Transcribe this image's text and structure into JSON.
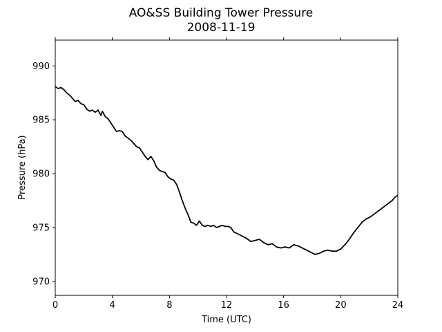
{
  "chart_data": {
    "type": "line",
    "title": "AO&SS Building Tower Pressure",
    "subtitle": "2008-11-19",
    "xlabel": "Time (UTC)",
    "ylabel": "Pressure (hPa)",
    "xlim": [
      0,
      24
    ],
    "ylim": [
      968.7,
      992.4
    ],
    "xticks": [
      0,
      4,
      8,
      12,
      16,
      20,
      24
    ],
    "yticks": [
      970,
      975,
      980,
      985,
      990
    ],
    "grid": false,
    "line_color": "#000000",
    "series": [
      {
        "x": [
          0.0,
          0.2,
          0.4,
          0.6,
          0.8,
          1.0,
          1.2,
          1.4,
          1.6,
          1.8,
          2.0,
          2.2,
          2.4,
          2.6,
          2.8,
          3.0,
          3.2,
          3.3,
          3.5,
          3.7,
          3.9,
          4.1,
          4.3,
          4.5,
          4.7,
          4.9,
          5.1,
          5.3,
          5.5,
          5.7,
          5.9,
          6.1,
          6.3,
          6.5,
          6.7,
          6.9,
          7.1,
          7.3,
          7.5,
          7.7,
          7.9,
          8.1,
          8.3,
          8.5,
          8.7,
          8.9,
          9.1,
          9.3,
          9.5,
          9.7,
          9.9,
          10.1,
          10.3,
          10.5,
          10.7,
          10.9,
          11.1,
          11.3,
          11.5,
          11.7,
          11.9,
          12.1,
          12.3,
          12.5,
          12.8,
          13.1,
          13.4,
          13.7,
          14.0,
          14.3,
          14.6,
          14.9,
          15.2,
          15.5,
          15.8,
          16.1,
          16.4,
          16.7,
          17.0,
          17.3,
          17.6,
          17.9,
          18.2,
          18.5,
          18.8,
          19.1,
          19.4,
          19.7,
          20.0,
          20.3,
          20.6,
          20.9,
          21.2,
          21.5,
          21.8,
          22.1,
          22.4,
          22.7,
          23.0,
          23.3,
          23.6,
          23.8,
          24.0
        ],
        "values": [
          988.1,
          987.9,
          988.0,
          987.8,
          987.5,
          987.3,
          987.0,
          986.7,
          986.8,
          986.5,
          986.4,
          986.0,
          985.8,
          985.9,
          985.7,
          985.9,
          985.4,
          985.8,
          985.3,
          985.1,
          984.7,
          984.3,
          983.9,
          984.0,
          983.9,
          983.5,
          983.3,
          983.1,
          982.8,
          982.5,
          982.4,
          982.0,
          981.6,
          981.3,
          981.6,
          981.2,
          980.6,
          980.3,
          980.2,
          980.1,
          979.7,
          979.5,
          979.4,
          979.0,
          978.3,
          977.5,
          976.8,
          976.2,
          975.5,
          975.4,
          975.2,
          975.6,
          975.2,
          975.1,
          975.2,
          975.1,
          975.2,
          975.0,
          975.1,
          975.2,
          975.1,
          975.1,
          975.0,
          974.6,
          974.4,
          974.2,
          974.0,
          973.7,
          973.8,
          973.9,
          973.6,
          973.4,
          973.5,
          973.2,
          973.1,
          973.2,
          973.1,
          973.4,
          973.3,
          973.1,
          972.9,
          972.7,
          972.5,
          972.6,
          972.8,
          972.9,
          972.8,
          972.8,
          973.0,
          973.4,
          973.9,
          974.5,
          975.0,
          975.5,
          975.8,
          976.0,
          976.3,
          976.6,
          976.9,
          977.2,
          977.5,
          977.8,
          978.0
        ]
      }
    ]
  }
}
